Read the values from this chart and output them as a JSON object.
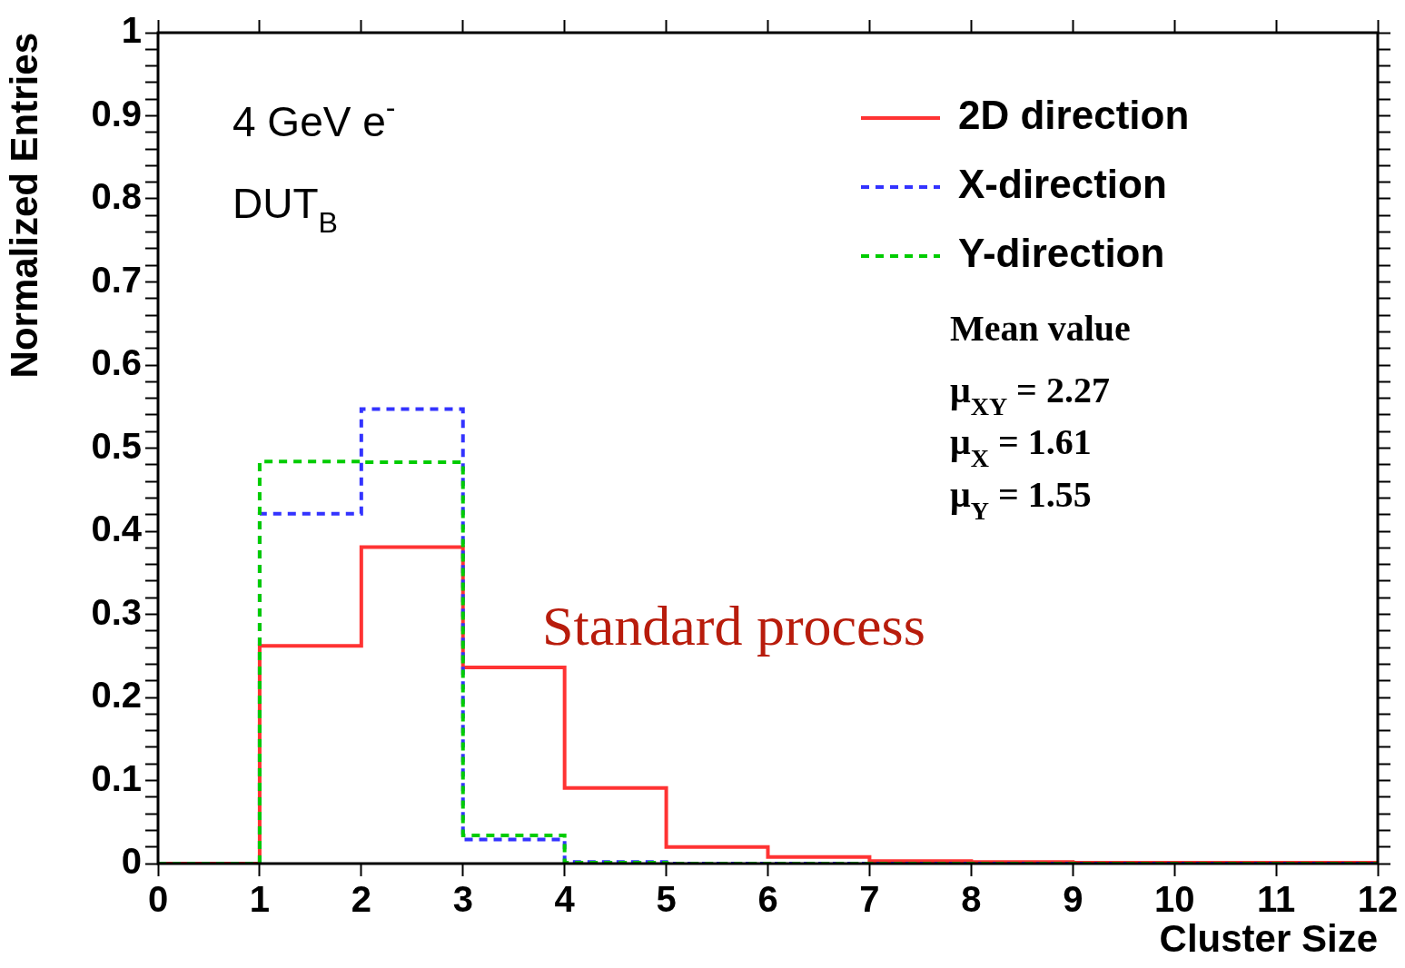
{
  "chart_data": {
    "type": "histogram",
    "xlabel": "Cluster Size",
    "ylabel": "Normalized Entries",
    "bins": [
      0,
      1,
      2,
      3,
      4,
      5,
      6,
      7,
      8,
      9,
      10,
      11,
      12
    ],
    "series": [
      {
        "name": "2D direction",
        "color": "#ff3333",
        "line_style": "solid",
        "values": [
          0,
          0.262,
          0.381,
          0.236,
          0.091,
          0.02,
          0.008,
          0.003,
          0.002,
          0.001,
          0.001,
          0.001
        ]
      },
      {
        "name": "X-direction",
        "color": "#3333ff",
        "line_style": "dashed",
        "values": [
          0,
          0.421,
          0.547,
          0.029,
          0.002,
          0,
          0,
          0,
          0,
          0,
          0,
          0
        ]
      },
      {
        "name": "Y-direction",
        "color": "#00cc00",
        "line_style": "dashed",
        "values": [
          0,
          0.484,
          0.483,
          0.034,
          0.001,
          0,
          0,
          0,
          0,
          0,
          0,
          0
        ]
      }
    ],
    "xlim": [
      0,
      12
    ],
    "xticks": [
      0,
      1,
      2,
      3,
      4,
      5,
      6,
      7,
      8,
      9,
      10,
      11,
      12
    ],
    "ylim": [
      0,
      1
    ],
    "yticks": [
      0,
      {
        "value": 0.02,
        "label": null
      },
      {
        "value": 0.04,
        "label": null
      },
      {
        "value": 0.06,
        "label": null
      },
      {
        "value": 0.08,
        "label": null
      },
      0.1,
      {
        "value": 0.12,
        "label": null
      },
      {
        "value": 0.14,
        "label": null
      },
      {
        "value": 0.16,
        "label": null
      },
      {
        "value": 0.18,
        "label": null
      },
      0.2,
      {
        "value": 0.22,
        "label": null
      },
      {
        "value": 0.24,
        "label": null
      },
      {
        "value": 0.26,
        "label": null
      },
      {
        "value": 0.28,
        "label": null
      },
      0.3,
      {
        "value": 0.32,
        "label": null
      },
      {
        "value": 0.34,
        "label": null
      },
      {
        "value": 0.36,
        "label": null
      },
      {
        "value": 0.38,
        "label": null
      },
      0.4,
      {
        "value": 0.42,
        "label": null
      },
      {
        "value": 0.44,
        "label": null
      },
      {
        "value": 0.46,
        "label": null
      },
      {
        "value": 0.48,
        "label": null
      },
      0.5,
      {
        "value": 0.52,
        "label": null
      },
      {
        "value": 0.54,
        "label": null
      },
      {
        "value": 0.56,
        "label": null
      },
      {
        "value": 0.58,
        "label": null
      },
      0.6,
      {
        "value": 0.62,
        "label": null
      },
      {
        "value": 0.64,
        "label": null
      },
      {
        "value": 0.66,
        "label": null
      },
      {
        "value": 0.68,
        "label": null
      },
      0.7,
      {
        "value": 0.72,
        "label": null
      },
      {
        "value": 0.74,
        "label": null
      },
      {
        "value": 0.76,
        "label": null
      },
      {
        "value": 0.78,
        "label": null
      },
      0.8,
      {
        "value": 0.82,
        "label": null
      },
      {
        "value": 0.84,
        "label": null
      },
      {
        "value": 0.86,
        "label": null
      },
      {
        "value": 0.88,
        "label": null
      },
      0.9,
      {
        "value": 0.92,
        "label": null
      },
      {
        "value": 0.94,
        "label": null
      },
      {
        "value": 0.96,
        "label": null
      },
      {
        "value": 0.98,
        "label": null
      },
      1
    ],
    "legend": "top right",
    "annotations": [
      "4 GeV e$^{-}$",
      "DUT$_{B}$",
      "Mean value",
      "μ$_{XY}$ = 2.27",
      "μ$_{X}$ = 1.61",
      "μ$_{Y}$ = 1.55",
      "Standard process"
    ]
  }
}
